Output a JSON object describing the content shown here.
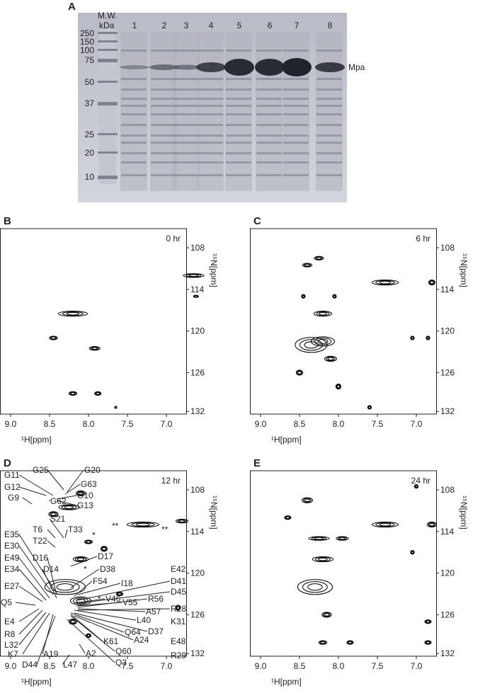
{
  "panels": {
    "A": {
      "label": "A",
      "mw_header": "M.W.",
      "mw_unit": "kDa",
      "lanes": [
        "1",
        "2",
        "3",
        "4",
        "5",
        "6",
        "7",
        "8"
      ],
      "markers": [
        "250",
        "150",
        "100",
        "75",
        "50",
        "37",
        "25",
        "20",
        "10"
      ],
      "band_label": "Mpa"
    },
    "B": {
      "label": "B",
      "time": "0 hr"
    },
    "C": {
      "label": "C",
      "time": "6 hr"
    },
    "D": {
      "label": "D",
      "time": "12 hr",
      "residues": [
        "G11",
        "G25",
        "G20",
        "G12",
        "G63",
        "G10",
        "G9",
        "G62",
        "G13",
        "S21",
        "T33",
        "T6",
        "E35",
        "E30",
        "T22",
        "E49",
        "D16",
        "D17",
        "E34",
        "D14",
        "D38",
        "E42",
        "F54",
        "I18",
        "D41",
        "E27",
        "D45",
        "Q5",
        "V46",
        "V55",
        "R56",
        "A57",
        "R28",
        "E4",
        "L40",
        "K31",
        "R8",
        "Q64",
        "D37",
        "K61",
        "A24",
        "L32",
        "A2",
        "Q60",
        "E48",
        "K7",
        "A19",
        "Q3",
        "D44",
        "L47",
        "R29"
      ],
      "marks": [
        "**",
        "**",
        "*",
        "*",
        "*"
      ]
    },
    "E": {
      "label": "E",
      "time": "24 hr"
    }
  },
  "axes": {
    "x_label": "¹H[ppm]",
    "y_label": "¹⁵N[ppm]",
    "xticks": [
      "9.0",
      "8.5",
      "8.0",
      "7.5",
      "7.0"
    ],
    "yticks": [
      "108",
      "114",
      "120",
      "126",
      "132"
    ]
  }
}
